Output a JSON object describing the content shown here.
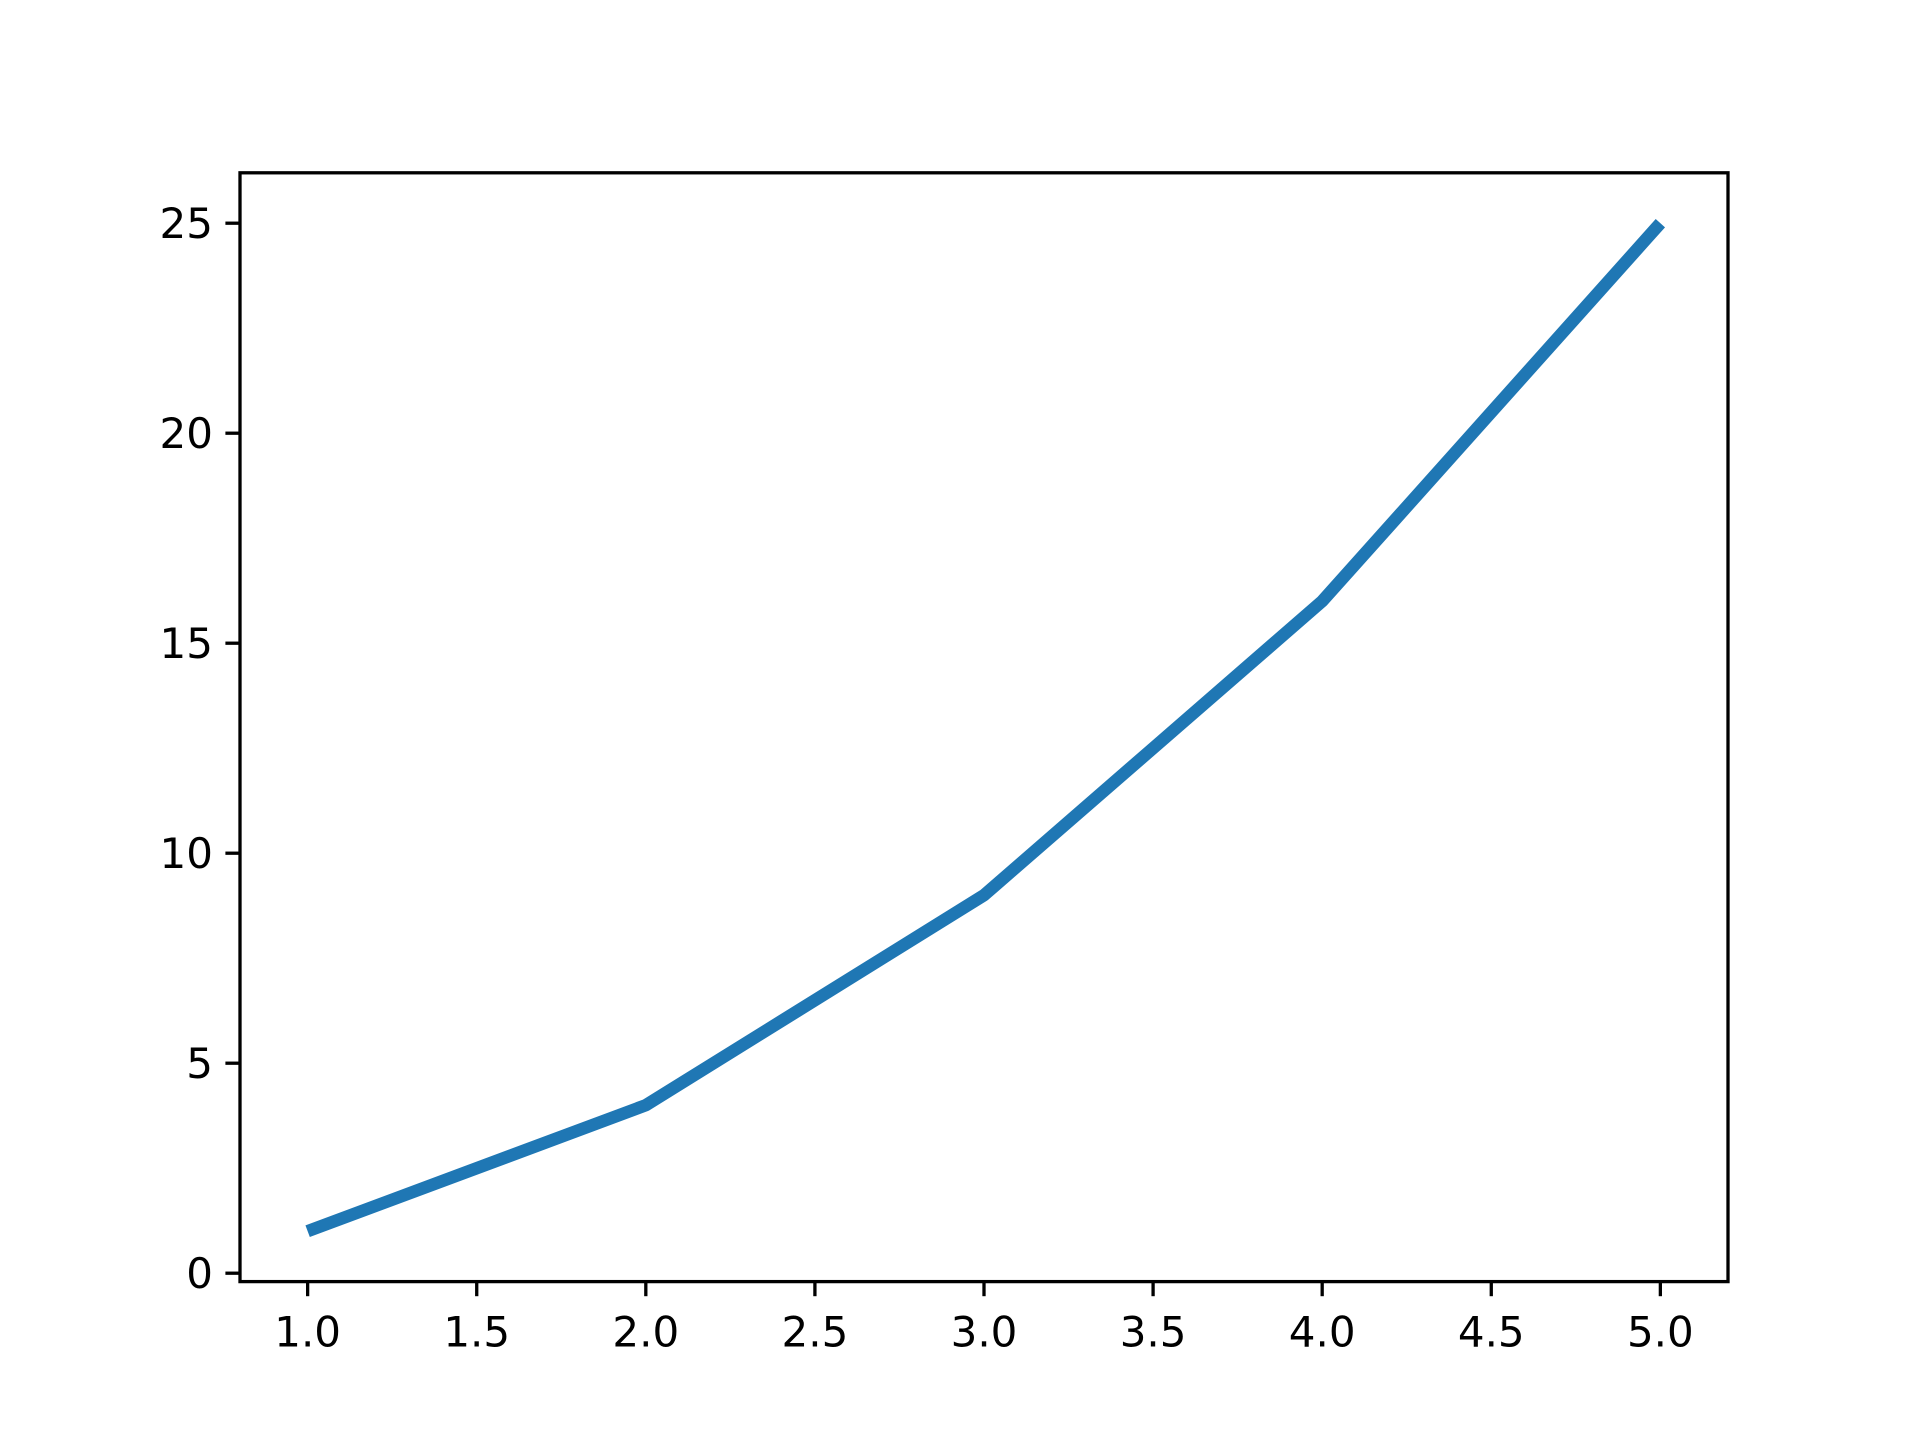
{
  "chart_data": {
    "type": "line",
    "title": "",
    "xlabel": "",
    "ylabel": "",
    "x": [
      1,
      2,
      3,
      4,
      5
    ],
    "series": [
      {
        "values": [
          1,
          4,
          9,
          16,
          25
        ],
        "color": "#1f77b4"
      }
    ],
    "xlim": [
      0.8,
      5.2
    ],
    "ylim": [
      -0.2,
      26.2
    ],
    "xticks": [
      1.0,
      1.5,
      2.0,
      2.5,
      3.0,
      3.5,
      4.0,
      4.5,
      5.0
    ],
    "xtick_labels": [
      "1.0",
      "1.5",
      "2.0",
      "2.5",
      "3.0",
      "3.5",
      "4.0",
      "4.5",
      "5.0"
    ],
    "yticks": [
      0,
      5,
      10,
      15,
      20,
      25
    ],
    "ytick_labels": [
      "0",
      "5",
      "10",
      "15",
      "20",
      "25"
    ],
    "grid": false,
    "legend": "none"
  }
}
